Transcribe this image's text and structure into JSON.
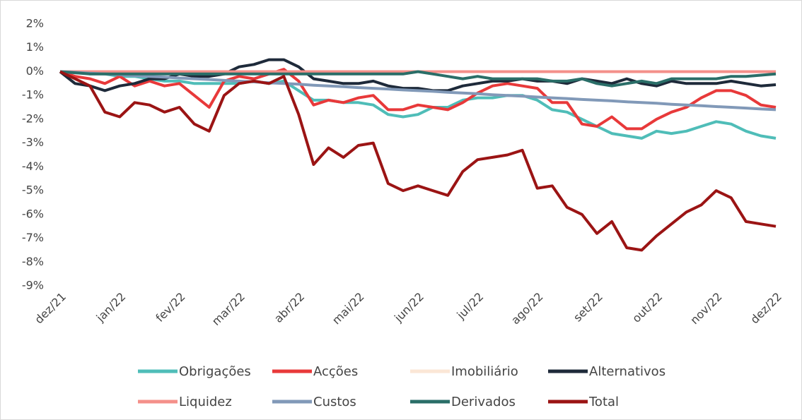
{
  "chart_data": {
    "type": "line",
    "x": [
      0,
      0.25,
      0.5,
      0.75,
      1,
      1.25,
      1.5,
      1.75,
      2,
      2.25,
      2.5,
      2.75,
      3,
      3.25,
      3.5,
      3.75,
      4,
      4.25,
      4.5,
      4.75,
      5,
      5.25,
      5.5,
      5.75,
      6,
      6.25,
      6.5,
      6.75,
      7,
      7.25,
      7.5,
      7.75,
      8,
      8.25,
      8.5,
      8.75,
      9,
      9.25,
      9.5,
      9.75,
      10,
      10.25,
      10.5,
      10.75,
      11,
      11.25,
      11.5,
      11.75,
      12
    ],
    "xlim": [
      0,
      12
    ],
    "xticks": [
      {
        "value": 0,
        "label": "dez/21"
      },
      {
        "value": 1,
        "label": "jan/22"
      },
      {
        "value": 2,
        "label": "fev/22"
      },
      {
        "value": 3,
        "label": "mar/22"
      },
      {
        "value": 4,
        "label": "abr/22"
      },
      {
        "value": 5,
        "label": "mai/22"
      },
      {
        "value": 6,
        "label": "jun/22"
      },
      {
        "value": 7,
        "label": "jul/22"
      },
      {
        "value": 8,
        "label": "ago/22"
      },
      {
        "value": 9,
        "label": "set/22"
      },
      {
        "value": 10,
        "label": "out/22"
      },
      {
        "value": 11,
        "label": "nov/22"
      },
      {
        "value": 12,
        "label": "dez/22"
      }
    ],
    "ylim": [
      -9,
      2
    ],
    "yticks": [
      {
        "value": 2,
        "label": "2%"
      },
      {
        "value": 1,
        "label": "1%"
      },
      {
        "value": 0,
        "label": "0%"
      },
      {
        "value": -1,
        "label": "-1%"
      },
      {
        "value": -2,
        "label": "-2%"
      },
      {
        "value": -3,
        "label": "-3%"
      },
      {
        "value": -4,
        "label": "-4%"
      },
      {
        "value": -5,
        "label": "-5%"
      },
      {
        "value": -6,
        "label": "-6%"
      },
      {
        "value": -7,
        "label": "-7%"
      },
      {
        "value": -8,
        "label": "-8%"
      },
      {
        "value": -9,
        "label": "-9%"
      }
    ],
    "grid": false,
    "series": [
      {
        "name": "Obrigações",
        "color": "#4fbdb8",
        "values": [
          0,
          0,
          -0.1,
          -0.1,
          -0.2,
          -0.2,
          -0.3,
          -0.4,
          -0.4,
          -0.5,
          -0.5,
          -0.5,
          -0.5,
          -0.4,
          -0.5,
          -0.4,
          -0.8,
          -1.2,
          -1.2,
          -1.3,
          -1.3,
          -1.4,
          -1.8,
          -1.9,
          -1.8,
          -1.5,
          -1.5,
          -1.2,
          -1.1,
          -1.1,
          -1,
          -1,
          -1.2,
          -1.6,
          -1.7,
          -2,
          -2.3,
          -2.6,
          -2.7,
          -2.8,
          -2.5,
          -2.6,
          -2.5,
          -2.3,
          -2.1,
          -2.2,
          -2.5,
          -2.7,
          -2.8
        ]
      },
      {
        "name": "Acções",
        "color": "#e8393a",
        "values": [
          0,
          -0.2,
          -0.3,
          -0.5,
          -0.2,
          -0.6,
          -0.4,
          -0.6,
          -0.5,
          -1,
          -1.5,
          -0.4,
          -0.2,
          -0.3,
          -0.1,
          0.1,
          -0.4,
          -1.4,
          -1.2,
          -1.3,
          -1.1,
          -1,
          -1.6,
          -1.6,
          -1.4,
          -1.5,
          -1.6,
          -1.3,
          -0.9,
          -0.6,
          -0.5,
          -0.6,
          -0.7,
          -1.3,
          -1.3,
          -2.2,
          -2.3,
          -1.9,
          -2.4,
          -2.4,
          -2,
          -1.7,
          -1.5,
          -1.1,
          -0.8,
          -0.8,
          -1,
          -1.4,
          -1.5
        ]
      },
      {
        "name": "Imobiliário",
        "color": "#fbe6d6",
        "values": [
          0,
          0,
          0,
          0,
          0,
          0,
          0,
          0,
          0,
          0,
          0,
          0,
          0,
          0,
          0,
          0,
          0,
          0,
          0,
          0,
          0,
          0,
          0,
          0,
          0,
          0,
          0,
          0,
          0,
          0,
          0,
          0,
          0,
          0,
          0,
          0,
          0,
          0,
          0,
          0,
          0,
          0,
          0,
          0,
          0,
          0,
          0,
          0,
          0
        ]
      },
      {
        "name": "Alternativos",
        "color": "#1e2a3a",
        "values": [
          0,
          -0.5,
          -0.6,
          -0.8,
          -0.6,
          -0.5,
          -0.3,
          -0.3,
          -0.1,
          -0.2,
          -0.2,
          -0.1,
          0.2,
          0.3,
          0.5,
          0.5,
          0.2,
          -0.3,
          -0.4,
          -0.5,
          -0.5,
          -0.4,
          -0.6,
          -0.7,
          -0.7,
          -0.8,
          -0.8,
          -0.6,
          -0.5,
          -0.4,
          -0.4,
          -0.3,
          -0.4,
          -0.4,
          -0.5,
          -0.3,
          -0.4,
          -0.5,
          -0.3,
          -0.5,
          -0.6,
          -0.4,
          -0.5,
          -0.5,
          -0.5,
          -0.4,
          -0.5,
          -0.6,
          -0.55
        ]
      },
      {
        "name": "Liquidez",
        "color": "#f4908a",
        "values": [
          0,
          0,
          0,
          0,
          0,
          0,
          0,
          0,
          0,
          0,
          0,
          0,
          0,
          0,
          0,
          0,
          0,
          0,
          0,
          0,
          0,
          0,
          0,
          0,
          0,
          0,
          0,
          0,
          0,
          0,
          0,
          0,
          0,
          0,
          0,
          0,
          0,
          0,
          0,
          0,
          0,
          0,
          0,
          0,
          0,
          0,
          0,
          0,
          0
        ]
      },
      {
        "name": "Custos",
        "color": "#8199b8",
        "values": [
          0,
          -0.03,
          -0.07,
          -0.1,
          -0.13,
          -0.17,
          -0.2,
          -0.23,
          -0.27,
          -0.3,
          -0.33,
          -0.37,
          -0.4,
          -0.43,
          -0.47,
          -0.5,
          -0.53,
          -0.57,
          -0.6,
          -0.63,
          -0.67,
          -0.7,
          -0.73,
          -0.77,
          -0.8,
          -0.83,
          -0.87,
          -0.9,
          -0.93,
          -0.97,
          -1,
          -1.03,
          -1.07,
          -1.1,
          -1.13,
          -1.17,
          -1.2,
          -1.23,
          -1.27,
          -1.3,
          -1.33,
          -1.37,
          -1.4,
          -1.43,
          -1.47,
          -1.5,
          -1.53,
          -1.57,
          -1.6
        ]
      },
      {
        "name": "Derivados",
        "color": "#2a6e68",
        "values": [
          0,
          -0.05,
          -0.1,
          -0.1,
          -0.1,
          -0.1,
          -0.1,
          -0.1,
          -0.1,
          -0.1,
          -0.1,
          -0.1,
          -0.1,
          -0.1,
          -0.1,
          -0.1,
          -0.1,
          -0.1,
          -0.1,
          -0.1,
          -0.1,
          -0.1,
          -0.1,
          -0.1,
          0,
          -0.1,
          -0.2,
          -0.3,
          -0.2,
          -0.3,
          -0.3,
          -0.3,
          -0.3,
          -0.4,
          -0.4,
          -0.3,
          -0.5,
          -0.6,
          -0.5,
          -0.4,
          -0.5,
          -0.3,
          -0.3,
          -0.3,
          -0.3,
          -0.2,
          -0.2,
          -0.15,
          -0.1
        ]
      },
      {
        "name": "Total",
        "color": "#9b1414",
        "values": [
          0,
          -0.3,
          -0.6,
          -1.7,
          -1.9,
          -1.3,
          -1.4,
          -1.7,
          -1.5,
          -2.2,
          -2.5,
          -1,
          -0.5,
          -0.4,
          -0.5,
          -0.2,
          -1.8,
          -3.9,
          -3.2,
          -3.6,
          -3.1,
          -3,
          -4.7,
          -5,
          -4.8,
          -5,
          -5.2,
          -4.2,
          -3.7,
          -3.6,
          -3.5,
          -3.3,
          -4.9,
          -4.8,
          -5.7,
          -6,
          -6.8,
          -6.3,
          -7.4,
          -7.5,
          -6.9,
          -6.4,
          -5.9,
          -5.6,
          -5,
          -5.3,
          -6.3,
          -6.4,
          -6.5
        ]
      }
    ]
  }
}
